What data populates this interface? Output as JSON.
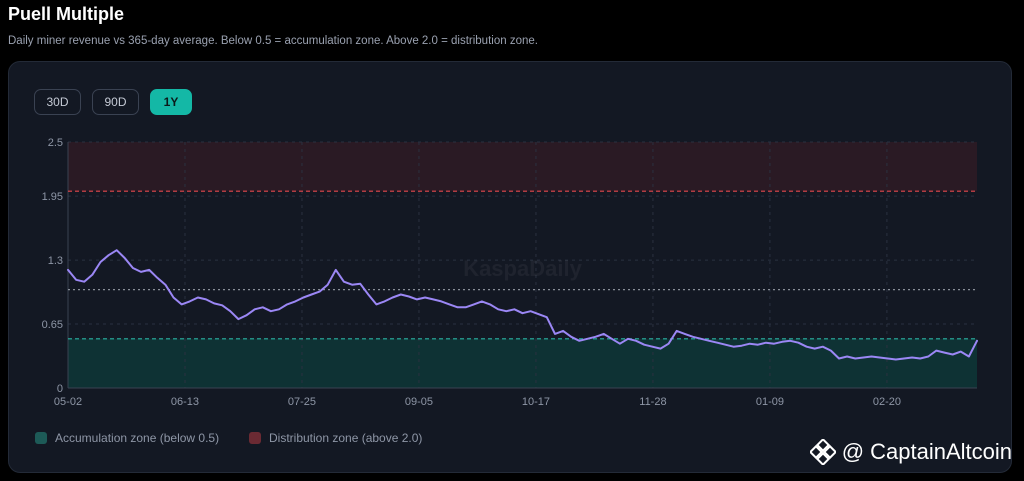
{
  "header": {
    "title": "Puell Multiple",
    "subtitle": "Daily miner revenue vs 365-day average. Below 0.5 = accumulation zone. Above 2.0 = distribution zone."
  },
  "range_buttons": [
    {
      "label": "30D",
      "active": false
    },
    {
      "label": "90D",
      "active": false
    },
    {
      "label": "1Y",
      "active": true
    }
  ],
  "legend": {
    "accumulation_label": "Accumulation zone (below 0.5)",
    "distribution_label": "Distribution zone (above 2.0)"
  },
  "watermark": {
    "chart_mark": "KaspaDaily",
    "brand": "@ CaptainAltcoin"
  },
  "colors": {
    "line": "#9b87f5",
    "accumulation_fill": "#0e3b3b",
    "accumulation_line": "#2bb3a3",
    "distribution_fill": "#2a1a24",
    "distribution_line": "#e5484d",
    "reference_line": "#8a8f99",
    "accent": "#14b8a6"
  },
  "chart_data": {
    "type": "line",
    "title": "",
    "xlabel": "",
    "ylabel": "",
    "ylim": [
      0,
      2.5
    ],
    "yticks": [
      "0",
      "0.65",
      "1.3",
      "1.95",
      "2.5"
    ],
    "xticks": [
      "05-02",
      "06-13",
      "07-25",
      "09-05",
      "10-17",
      "11-28",
      "01-09",
      "02-20"
    ],
    "grid": true,
    "legend_position": "bottom-left",
    "thresholds": {
      "accumulation": 0.5,
      "reference": 1.0,
      "distribution": 2.0
    },
    "series": [
      {
        "values": [
          1.2,
          1.1,
          1.08,
          1.15,
          1.28,
          1.35,
          1.4,
          1.32,
          1.22,
          1.18,
          1.2,
          1.12,
          1.05,
          0.92,
          0.85,
          0.88,
          0.92,
          0.9,
          0.86,
          0.84,
          0.78,
          0.7,
          0.74,
          0.8,
          0.82,
          0.78,
          0.8,
          0.85,
          0.88,
          0.92,
          0.95,
          0.98,
          1.05,
          1.2,
          1.08,
          1.05,
          1.06,
          0.95,
          0.85,
          0.88,
          0.92,
          0.95,
          0.93,
          0.9,
          0.92,
          0.9,
          0.88,
          0.85,
          0.82,
          0.82,
          0.85,
          0.88,
          0.85,
          0.8,
          0.78,
          0.8,
          0.76,
          0.78,
          0.75,
          0.72,
          0.55,
          0.58,
          0.52,
          0.48,
          0.5,
          0.52,
          0.55,
          0.5,
          0.45,
          0.5,
          0.48,
          0.44,
          0.42,
          0.4,
          0.45,
          0.58,
          0.55,
          0.52,
          0.5,
          0.48,
          0.46,
          0.44,
          0.42,
          0.43,
          0.45,
          0.44,
          0.46,
          0.45,
          0.47,
          0.48,
          0.46,
          0.42,
          0.4,
          0.42,
          0.38,
          0.3,
          0.32,
          0.3,
          0.31,
          0.32,
          0.31,
          0.3,
          0.29,
          0.3,
          0.31,
          0.3,
          0.32,
          0.38,
          0.36,
          0.34,
          0.37,
          0.32,
          0.48
        ]
      }
    ]
  }
}
